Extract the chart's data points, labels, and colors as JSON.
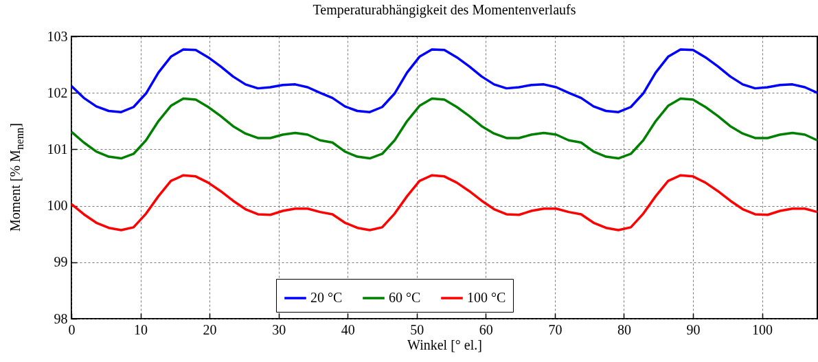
{
  "chart_data": {
    "type": "line",
    "title": "Temperaturabhängigkeit des Momentenverlaufs",
    "xlabel": "Winkel [° el.]",
    "ylabel": "Moment [% M$_{nenn}$]",
    "x": [
      0,
      1.8,
      3.6,
      5.4,
      7.2,
      9,
      10.8,
      12.6,
      14.4,
      16.2,
      18,
      19.8,
      21.6,
      23.4,
      25.2,
      27,
      28.8,
      30.6,
      32.4,
      34.2,
      36,
      37.8,
      39.6,
      41.4,
      43.2,
      45,
      46.8,
      48.6,
      50.4,
      52.2,
      54,
      55.8,
      57.6,
      59.4,
      61.2,
      63,
      64.8,
      66.6,
      68.4,
      70.2,
      72,
      73.8,
      75.6,
      77.4,
      79.2,
      81,
      82.8,
      84.6,
      86.4,
      88.2,
      90,
      91.8,
      93.6,
      95.4,
      97.2,
      99,
      100.8,
      102.6,
      104.4,
      106.2,
      108
    ],
    "series": [
      {
        "name": "20 °C",
        "color": "#0000ff",
        "values": [
          102.12,
          101.91,
          101.76,
          101.68,
          101.66,
          101.75,
          101.99,
          102.36,
          102.64,
          102.77,
          102.76,
          102.63,
          102.47,
          102.29,
          102.15,
          102.08,
          102.1,
          102.14,
          102.15,
          102.1,
          102.0,
          101.91,
          101.76,
          101.68,
          101.66,
          101.75,
          101.99,
          102.36,
          102.64,
          102.77,
          102.76,
          102.63,
          102.47,
          102.29,
          102.15,
          102.08,
          102.1,
          102.14,
          102.15,
          102.1,
          102.0,
          101.91,
          101.76,
          101.68,
          101.66,
          101.75,
          101.99,
          102.36,
          102.64,
          102.77,
          102.76,
          102.63,
          102.47,
          102.29,
          102.15,
          102.08,
          102.1,
          102.14,
          102.15,
          102.1,
          102.0
        ]
      },
      {
        "name": "60 °C",
        "color": "#008000",
        "values": [
          101.31,
          101.12,
          100.96,
          100.87,
          100.84,
          100.92,
          101.16,
          101.5,
          101.77,
          101.9,
          101.88,
          101.75,
          101.59,
          101.41,
          101.28,
          101.2,
          101.2,
          101.26,
          101.29,
          101.26,
          101.16,
          101.12,
          100.96,
          100.87,
          100.84,
          100.92,
          101.16,
          101.5,
          101.77,
          101.9,
          101.88,
          101.75,
          101.59,
          101.41,
          101.28,
          101.2,
          101.2,
          101.26,
          101.29,
          101.26,
          101.16,
          101.12,
          100.96,
          100.87,
          100.84,
          100.92,
          101.16,
          101.5,
          101.77,
          101.9,
          101.88,
          101.75,
          101.59,
          101.41,
          101.28,
          101.2,
          101.2,
          101.26,
          101.29,
          101.26,
          101.16
        ]
      },
      {
        "name": "100 °C",
        "color": "#ff0000",
        "values": [
          100.03,
          99.85,
          99.7,
          99.61,
          99.57,
          99.62,
          99.86,
          100.17,
          100.44,
          100.54,
          100.52,
          100.41,
          100.26,
          100.09,
          99.94,
          99.85,
          99.84,
          99.91,
          99.95,
          99.95,
          99.89,
          99.85,
          99.7,
          99.61,
          99.57,
          99.62,
          99.86,
          100.17,
          100.44,
          100.54,
          100.52,
          100.41,
          100.26,
          100.09,
          99.94,
          99.85,
          99.84,
          99.91,
          99.95,
          99.95,
          99.89,
          99.85,
          99.7,
          99.61,
          99.57,
          99.62,
          99.86,
          100.17,
          100.44,
          100.54,
          100.52,
          100.41,
          100.26,
          100.09,
          99.94,
          99.85,
          99.84,
          99.91,
          99.95,
          99.95,
          99.89
        ]
      }
    ],
    "xlim": [
      0,
      108
    ],
    "xticks": [
      0,
      10,
      20,
      30,
      40,
      50,
      60,
      70,
      80,
      90,
      100
    ],
    "ylim": [
      98,
      103
    ],
    "yticks": [
      98,
      99,
      100,
      101,
      102,
      103
    ],
    "grid": true,
    "legend": "bottom",
    "line_style": "solid",
    "marker": "none"
  }
}
